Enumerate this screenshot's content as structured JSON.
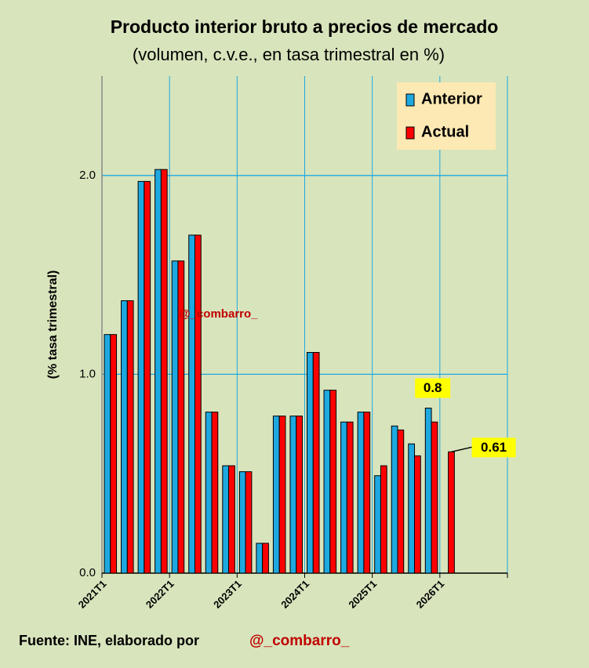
{
  "chart_data": {
    "type": "bar",
    "title": "Producto interior bruto a precios de mercado",
    "subtitle": "(volumen, c.v.e., en tasa trimestral en %)",
    "y_label": "(% tasa trimestral)",
    "source": "Fuente: INE, elaborado por",
    "source_handle": "@_combarro_",
    "watermark": "@_combarro_",
    "categories": [
      "2021T1",
      null,
      null,
      null,
      "2022T1",
      null,
      null,
      null,
      "2023T1",
      null,
      null,
      null,
      "2024T1",
      null,
      null,
      null,
      "2025T1",
      null,
      null,
      null,
      "2026T1",
      null,
      null,
      null
    ],
    "series": [
      {
        "name": "Anterior",
        "color": "#1ea8e0",
        "values": [
          1.2,
          1.37,
          1.97,
          2.03,
          1.57,
          1.7,
          0.81,
          0.54,
          0.51,
          0.15,
          0.79,
          0.79,
          1.11,
          0.92,
          0.76,
          0.81,
          0.49,
          0.74,
          0.65,
          0.83,
          null,
          null,
          null,
          null
        ],
        "value_labels": [
          null,
          null,
          null,
          null,
          null,
          null,
          null,
          null,
          null,
          null,
          null,
          null,
          null,
          null,
          null,
          null,
          null,
          null,
          null,
          "0.8",
          null,
          null,
          null,
          null
        ]
      },
      {
        "name": "Actual",
        "color": "#ff0000",
        "values": [
          1.2,
          1.37,
          1.97,
          2.03,
          1.57,
          1.7,
          0.81,
          0.54,
          0.51,
          0.15,
          0.79,
          0.79,
          1.11,
          0.92,
          0.76,
          0.81,
          0.54,
          0.72,
          0.59,
          0.76,
          0.61,
          null,
          null,
          null
        ],
        "value_labels": [
          null,
          null,
          null,
          null,
          null,
          null,
          null,
          null,
          null,
          null,
          null,
          null,
          null,
          null,
          null,
          null,
          null,
          null,
          null,
          null,
          "0.61",
          null,
          null,
          null
        ]
      }
    ],
    "ylim": [
      0,
      2.5
    ],
    "yticks": [
      {
        "value": 0,
        "label": "0.0"
      },
      {
        "value": 1,
        "label": "1.0"
      },
      {
        "value": 2,
        "label": "2.0"
      }
    ],
    "grid": true,
    "legend": "top-right"
  }
}
